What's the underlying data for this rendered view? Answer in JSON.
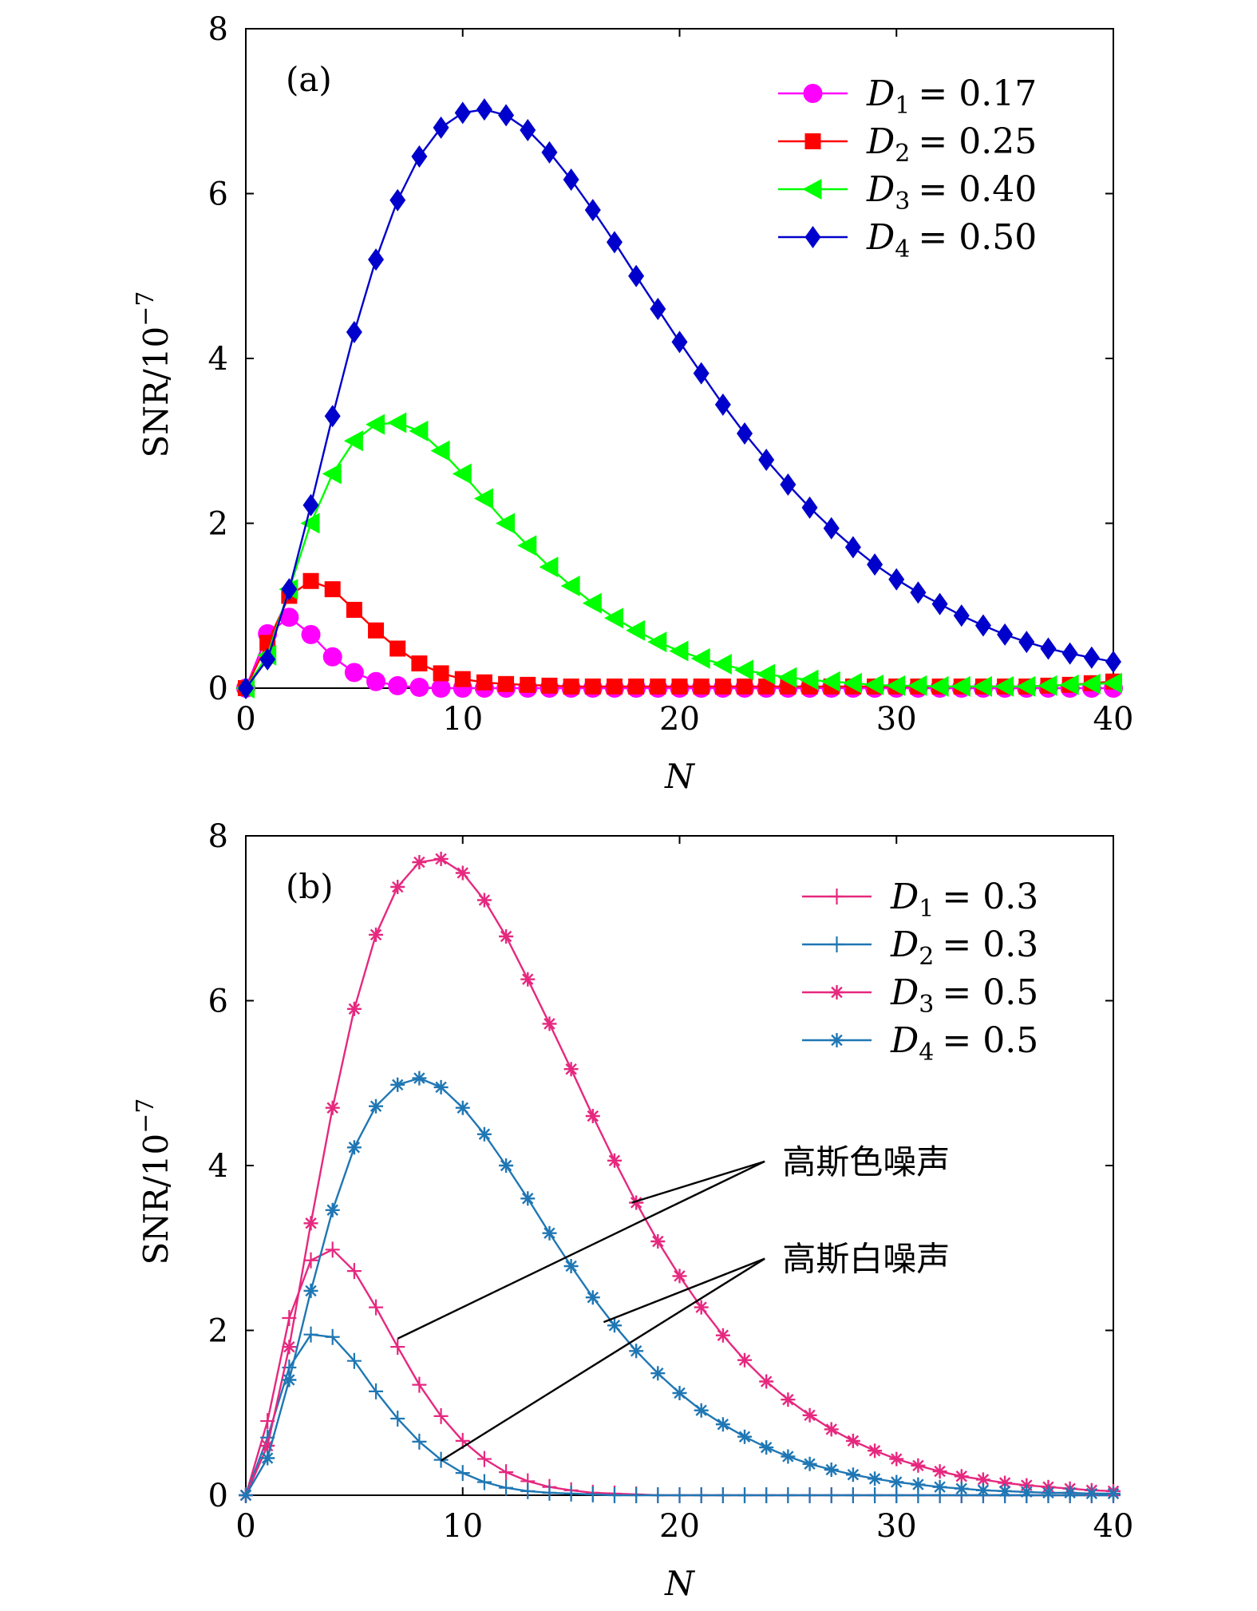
{
  "chart_data": [
    {
      "type": "line",
      "panel_label": "(a)",
      "xlabel": "N",
      "ylabel": "SNR/10",
      "ylabel_exponent": "−7",
      "xlim": [
        0,
        40
      ],
      "ylim": [
        0,
        8
      ],
      "xticks": [
        "0",
        "10",
        "20",
        "30",
        "40"
      ],
      "yticks": [
        "0",
        "2",
        "4",
        "6",
        "8"
      ],
      "legend_position": "top-right",
      "series": [
        {
          "name": "D1 = 0.17",
          "legend_var": "D",
          "legend_sub": "1",
          "legend_value": "= 0.17",
          "color": "#ff00ff",
          "marker": "circle",
          "x": [
            0,
            1,
            2,
            3,
            4,
            5,
            6,
            7,
            8,
            9,
            10,
            11,
            12,
            13,
            14,
            15,
            16,
            17,
            18,
            19,
            20,
            21,
            22,
            23,
            24,
            25,
            26,
            27,
            28,
            29,
            30,
            31,
            32,
            33,
            34,
            35,
            36,
            37,
            38,
            39,
            40
          ],
          "y": [
            0,
            0.66,
            0.86,
            0.65,
            0.38,
            0.19,
            0.08,
            0.03,
            0.01,
            0,
            0,
            0,
            0,
            0,
            0,
            0,
            0,
            0,
            0,
            0,
            0,
            0,
            0,
            0,
            0,
            0,
            0,
            0,
            0,
            0,
            0,
            0,
            0,
            0,
            0,
            0,
            0,
            0,
            0,
            0,
            0
          ]
        },
        {
          "name": "D2 = 0.25",
          "legend_var": "D",
          "legend_sub": "2",
          "legend_value": "= 0.25",
          "color": "#ff0000",
          "marker": "square",
          "x": [
            0,
            1,
            2,
            3,
            4,
            5,
            6,
            7,
            8,
            9,
            10,
            11,
            12,
            13,
            14,
            15,
            16,
            17,
            18,
            19,
            20,
            21,
            22,
            23,
            24,
            25,
            26,
            27,
            28,
            29,
            30,
            31,
            32,
            33,
            34,
            35,
            36,
            37,
            38,
            39,
            40
          ],
          "y": [
            0,
            0.55,
            1.12,
            1.3,
            1.2,
            0.95,
            0.7,
            0.48,
            0.3,
            0.18,
            0.11,
            0.07,
            0.05,
            0.04,
            0.03,
            0.02,
            0.02,
            0.02,
            0.02,
            0.02,
            0.02,
            0.02,
            0.02,
            0.02,
            0.02,
            0.02,
            0.02,
            0.02,
            0.02,
            0.02,
            0.02,
            0.02,
            0.02,
            0.02,
            0.02,
            0.02,
            0.02,
            0.03,
            0.04,
            0.06,
            0.08
          ]
        },
        {
          "name": "D3 = 0.40",
          "legend_var": "D",
          "legend_sub": "3",
          "legend_value": "= 0.40",
          "color": "#00ff00",
          "marker": "triangle-left",
          "x": [
            0,
            1,
            2,
            3,
            4,
            5,
            6,
            7,
            8,
            9,
            10,
            11,
            12,
            13,
            14,
            15,
            16,
            17,
            18,
            19,
            20,
            21,
            22,
            23,
            24,
            25,
            26,
            27,
            28,
            29,
            30,
            31,
            32,
            33,
            34,
            35,
            36,
            37,
            38,
            39,
            40
          ],
          "y": [
            0,
            0.4,
            1.2,
            2.0,
            2.6,
            3.0,
            3.2,
            3.22,
            3.12,
            2.88,
            2.6,
            2.3,
            2.0,
            1.73,
            1.47,
            1.24,
            1.03,
            0.85,
            0.7,
            0.56,
            0.45,
            0.36,
            0.29,
            0.22,
            0.17,
            0.13,
            0.1,
            0.08,
            0.06,
            0.04,
            0.03,
            0.03,
            0.02,
            0.02,
            0.02,
            0.02,
            0.02,
            0.03,
            0.04,
            0.05,
            0.06
          ]
        },
        {
          "name": "D4 = 0.50",
          "legend_var": "D",
          "legend_sub": "4",
          "legend_value": "= 0.50",
          "color": "#0000cc",
          "marker": "diamond",
          "x": [
            0,
            1,
            2,
            3,
            4,
            5,
            6,
            7,
            8,
            9,
            10,
            11,
            12,
            13,
            14,
            15,
            16,
            17,
            18,
            19,
            20,
            21,
            22,
            23,
            24,
            25,
            26,
            27,
            28,
            29,
            30,
            31,
            32,
            33,
            34,
            35,
            36,
            37,
            38,
            39,
            40
          ],
          "y": [
            0,
            0.35,
            1.2,
            2.22,
            3.3,
            4.32,
            5.2,
            5.92,
            6.45,
            6.8,
            6.98,
            7.02,
            6.95,
            6.77,
            6.5,
            6.17,
            5.8,
            5.41,
            5.0,
            4.6,
            4.2,
            3.82,
            3.44,
            3.09,
            2.77,
            2.47,
            2.19,
            1.94,
            1.71,
            1.5,
            1.32,
            1.16,
            1.02,
            0.88,
            0.76,
            0.65,
            0.56,
            0.48,
            0.42,
            0.37,
            0.32
          ]
        }
      ]
    },
    {
      "type": "line",
      "panel_label": "(b)",
      "xlabel": "N",
      "ylabel": "SNR/10",
      "ylabel_exponent": "−7",
      "xlim": [
        0,
        40
      ],
      "ylim": [
        0,
        8
      ],
      "xticks": [
        "0",
        "10",
        "20",
        "30",
        "40"
      ],
      "yticks": [
        "0",
        "2",
        "4",
        "6",
        "8"
      ],
      "legend_position": "top-right",
      "annotations": [
        {
          "text": "高斯色噪声",
          "targets": [
            [
              7,
              1.9
            ],
            [
              17.8,
              3.55
            ]
          ],
          "label_at": [
            24,
            4.05
          ]
        },
        {
          "text": "高斯白噪声",
          "targets": [
            [
              9,
              0.42
            ],
            [
              16.5,
              2.1
            ]
          ],
          "label_at": [
            24,
            2.87
          ]
        }
      ],
      "series": [
        {
          "name": "D1 = 0.3",
          "legend_var": "D",
          "legend_sub": "1",
          "legend_value": "= 0.3",
          "color": "#e6287f",
          "marker": "plus",
          "x": [
            0,
            1,
            2,
            3,
            4,
            5,
            6,
            7,
            8,
            9,
            10,
            11,
            12,
            13,
            14,
            15,
            16,
            17,
            18,
            19,
            20,
            21,
            22,
            23,
            24,
            25,
            26,
            27,
            28,
            29,
            30,
            31,
            32,
            33,
            34,
            35,
            36,
            37,
            38,
            39,
            40
          ],
          "y": [
            0,
            0.9,
            2.15,
            2.85,
            2.98,
            2.72,
            2.28,
            1.8,
            1.34,
            0.96,
            0.66,
            0.44,
            0.28,
            0.17,
            0.1,
            0.06,
            0.03,
            0.02,
            0.01,
            0,
            0,
            0,
            0,
            0,
            0,
            0,
            0,
            0,
            0,
            0,
            0,
            0,
            0,
            0,
            0,
            0,
            0,
            0,
            0,
            0,
            0
          ]
        },
        {
          "name": "D2 = 0.3",
          "legend_var": "D",
          "legend_sub": "2",
          "legend_value": "= 0.3",
          "color": "#1f77b4",
          "marker": "plus",
          "x": [
            0,
            1,
            2,
            3,
            4,
            5,
            6,
            7,
            8,
            9,
            10,
            11,
            12,
            13,
            14,
            15,
            16,
            17,
            18,
            19,
            20,
            21,
            22,
            23,
            24,
            25,
            26,
            27,
            28,
            29,
            30,
            31,
            32,
            33,
            34,
            35,
            36,
            37,
            38,
            39,
            40
          ],
          "y": [
            0,
            0.7,
            1.55,
            1.95,
            1.92,
            1.63,
            1.26,
            0.93,
            0.65,
            0.43,
            0.27,
            0.16,
            0.09,
            0.05,
            0.03,
            0.02,
            0.01,
            0,
            0,
            0,
            0,
            0,
            0,
            0,
            0,
            0,
            0,
            0,
            0,
            0,
            0,
            0,
            0,
            0,
            0,
            0,
            0,
            0,
            0,
            0,
            0
          ]
        },
        {
          "name": "D3 = 0.5",
          "legend_var": "D",
          "legend_sub": "3",
          "legend_value": "= 0.5",
          "color": "#e6287f",
          "marker": "star",
          "x": [
            0,
            1,
            2,
            3,
            4,
            5,
            6,
            7,
            8,
            9,
            10,
            11,
            12,
            13,
            14,
            15,
            16,
            17,
            18,
            19,
            20,
            21,
            22,
            23,
            24,
            25,
            26,
            27,
            28,
            29,
            30,
            31,
            32,
            33,
            34,
            35,
            36,
            37,
            38,
            39,
            40
          ],
          "y": [
            0,
            0.6,
            1.8,
            3.3,
            4.7,
            5.9,
            6.8,
            7.38,
            7.68,
            7.72,
            7.55,
            7.22,
            6.78,
            6.26,
            5.72,
            5.17,
            4.6,
            4.06,
            3.55,
            3.08,
            2.66,
            2.28,
            1.94,
            1.64,
            1.38,
            1.16,
            0.97,
            0.8,
            0.66,
            0.54,
            0.44,
            0.36,
            0.29,
            0.23,
            0.19,
            0.15,
            0.12,
            0.1,
            0.08,
            0.06,
            0.05
          ]
        },
        {
          "name": "D4 = 0.5",
          "legend_var": "D",
          "legend_sub": "4",
          "legend_value": "= 0.5",
          "color": "#1f77b4",
          "marker": "star",
          "x": [
            0,
            1,
            2,
            3,
            4,
            5,
            6,
            7,
            8,
            9,
            10,
            11,
            12,
            13,
            14,
            15,
            16,
            17,
            18,
            19,
            20,
            21,
            22,
            23,
            24,
            25,
            26,
            27,
            28,
            29,
            30,
            31,
            32,
            33,
            34,
            35,
            36,
            37,
            38,
            39,
            40
          ],
          "y": [
            0,
            0.45,
            1.4,
            2.48,
            3.46,
            4.22,
            4.72,
            4.98,
            5.06,
            4.95,
            4.7,
            4.38,
            4.0,
            3.6,
            3.18,
            2.78,
            2.4,
            2.06,
            1.75,
            1.48,
            1.24,
            1.03,
            0.86,
            0.71,
            0.58,
            0.47,
            0.38,
            0.31,
            0.25,
            0.2,
            0.16,
            0.13,
            0.1,
            0.08,
            0.06,
            0.05,
            0.04,
            0.03,
            0.03,
            0.02,
            0.02
          ]
        }
      ]
    }
  ]
}
